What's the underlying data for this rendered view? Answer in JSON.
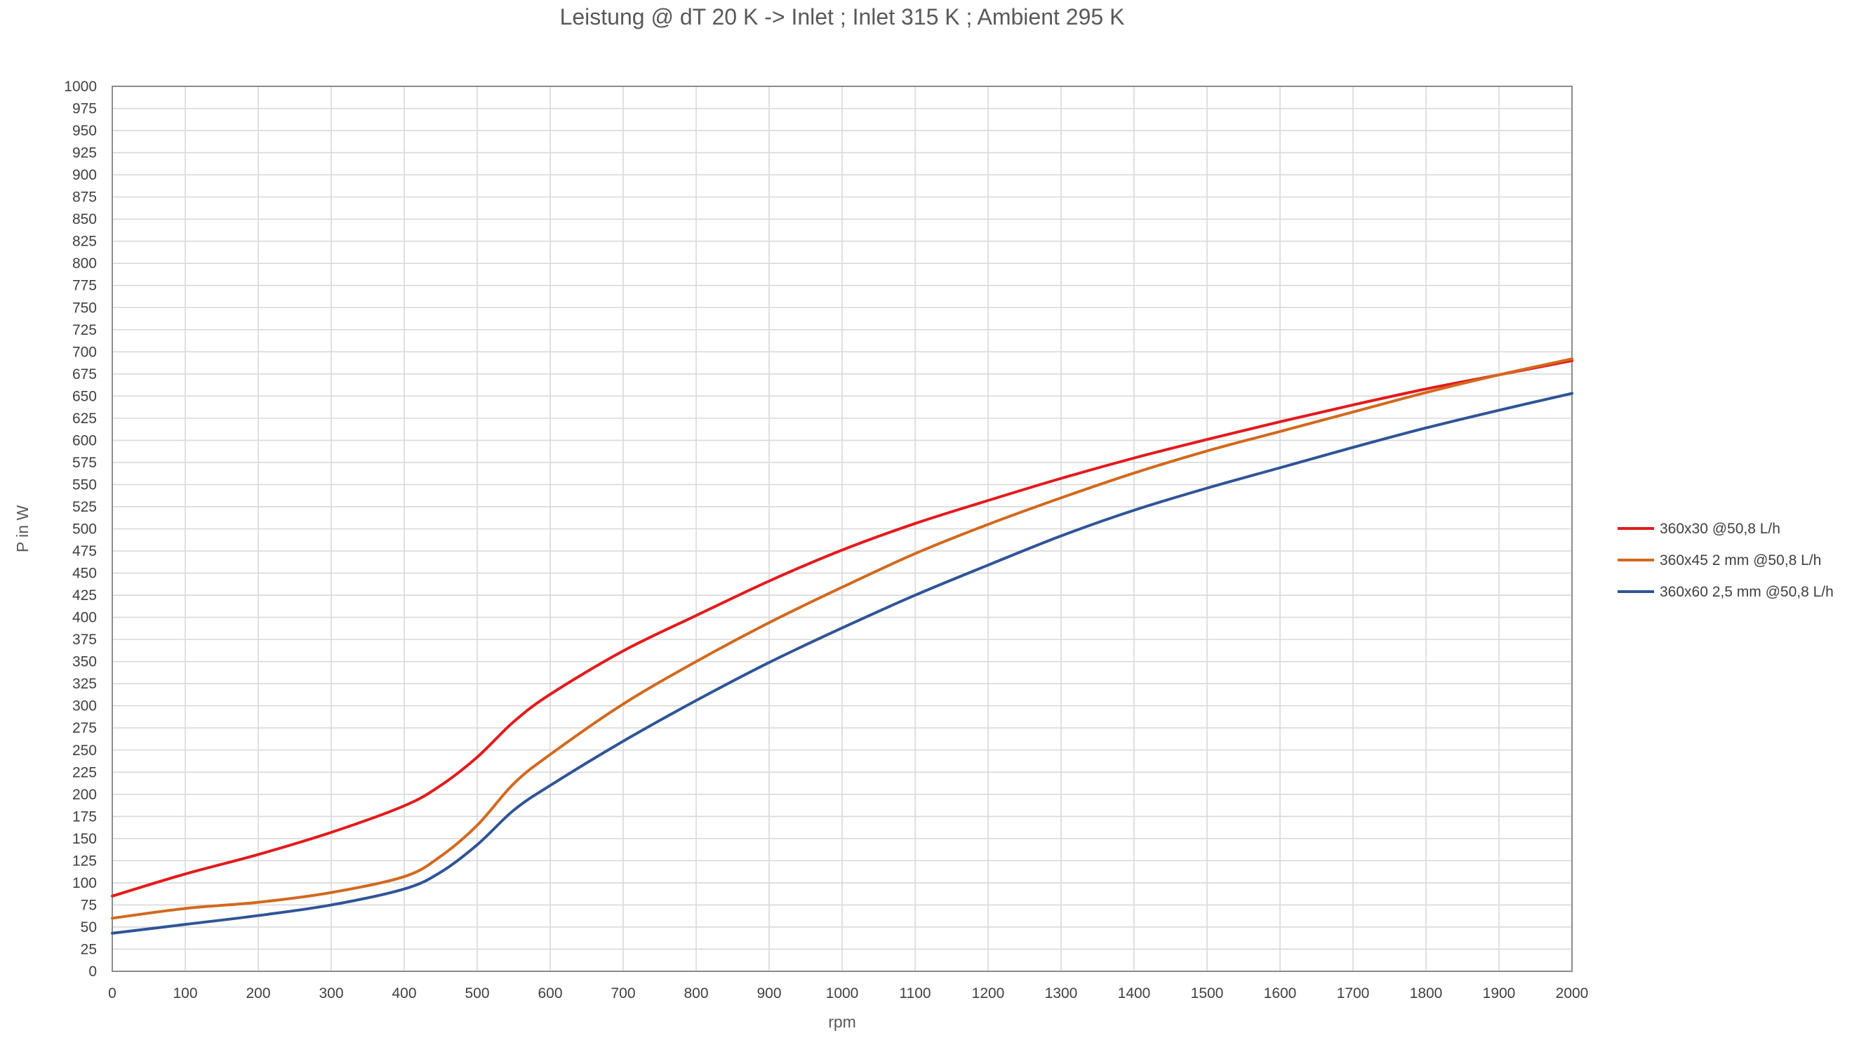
{
  "chart_data": {
    "type": "line",
    "title": "Leistung @ dT 20 K -> Inlet ; Inlet 315 K ; Ambient 295 K",
    "xlabel": "rpm",
    "ylabel": "P in W",
    "xlim": [
      0,
      2000
    ],
    "ylim": [
      0,
      1000
    ],
    "x_ticks": [
      0,
      100,
      200,
      300,
      400,
      500,
      600,
      700,
      800,
      900,
      1000,
      1100,
      1200,
      1300,
      1400,
      1500,
      1600,
      1700,
      1800,
      1900,
      2000
    ],
    "y_ticks": [
      0,
      25,
      50,
      75,
      100,
      125,
      150,
      175,
      200,
      225,
      250,
      275,
      300,
      325,
      350,
      375,
      400,
      425,
      450,
      475,
      500,
      525,
      550,
      575,
      600,
      625,
      650,
      675,
      700,
      725,
      750,
      775,
      800,
      825,
      850,
      875,
      900,
      925,
      950,
      975,
      1000
    ],
    "grid": true,
    "legend_position": "right",
    "x": [
      0,
      100,
      200,
      300,
      400,
      450,
      500,
      550,
      600,
      700,
      800,
      900,
      1000,
      1100,
      1200,
      1300,
      1400,
      1500,
      1600,
      1700,
      1800,
      1900,
      2000
    ],
    "series": [
      {
        "name": "360x30 @50,8 L/h",
        "color": "#e31a1c",
        "values": [
          85,
          110,
          132,
          157,
          187,
          210,
          242,
          282,
          313,
          362,
          402,
          441,
          476,
          506,
          532,
          557,
          580,
          601,
          621,
          640,
          658,
          674,
          690
        ]
      },
      {
        "name": "360x45 2 mm @50,8 L/h",
        "color": "#d2691e",
        "values": [
          60,
          71,
          78,
          89,
          107,
          130,
          165,
          212,
          245,
          302,
          350,
          394,
          434,
          472,
          505,
          535,
          563,
          588,
          610,
          632,
          654,
          674,
          692
        ]
      },
      {
        "name": "360x60 2,5 mm @50,8 L/h",
        "color": "#2f5597",
        "values": [
          43,
          53,
          63,
          75,
          93,
          112,
          143,
          182,
          210,
          260,
          306,
          349,
          388,
          425,
          459,
          492,
          521,
          546,
          569,
          592,
          614,
          634,
          653
        ]
      }
    ]
  }
}
